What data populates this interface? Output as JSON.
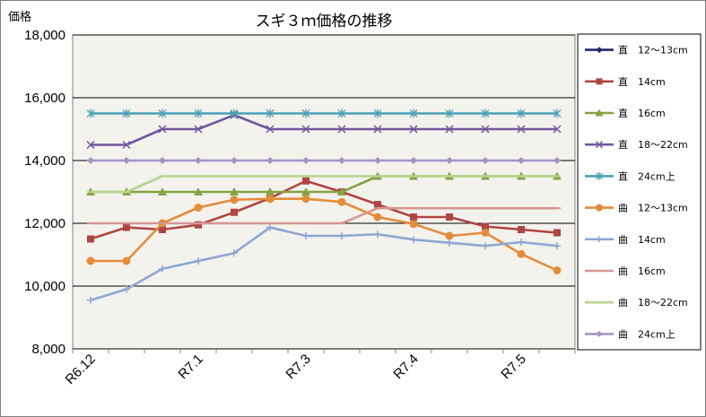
{
  "chart_data": {
    "type": "line",
    "title": "スギ３ｍ価格の推移",
    "ylabel": "価格",
    "xlabel": "",
    "ylim": [
      8000,
      18000
    ],
    "yticks": [
      "8,000",
      "10,000",
      "12,000",
      "14,000",
      "16,000",
      "18,000"
    ],
    "ytick_values": [
      8000,
      10000,
      12000,
      14000,
      16000,
      18000
    ],
    "x_tick_labels": [
      {
        "index": 0,
        "label": "R6.12"
      },
      {
        "index": 3,
        "label": "R7.1"
      },
      {
        "index": 6,
        "label": "R7.3"
      },
      {
        "index": 9,
        "label": "R7.4"
      },
      {
        "index": 12,
        "label": "R7.5"
      }
    ],
    "num_points": 14,
    "grid": true,
    "legend_position": "right",
    "plot_background": "#f3f2ed",
    "series": [
      {
        "name": "直　12～13cm",
        "color": "#1f2a6b",
        "marker": "diamond",
        "values": [
          null,
          null,
          null,
          null,
          null,
          null,
          null,
          null,
          null,
          null,
          null,
          null,
          null,
          null
        ]
      },
      {
        "name": "直　14cm",
        "color": "#b04543",
        "marker": "square",
        "values": [
          11500,
          11870,
          11800,
          11950,
          12350,
          12800,
          13350,
          13000,
          12600,
          12200,
          12200,
          11900,
          11800,
          11700
        ]
      },
      {
        "name": "直　16cm",
        "color": "#83a343",
        "marker": "triangle",
        "values": [
          13000,
          13000,
          13000,
          13000,
          13000,
          13000,
          13000,
          13000,
          13500,
          13500,
          13500,
          13500,
          13500,
          13500
        ]
      },
      {
        "name": "直　18～22cm",
        "color": "#71589d",
        "marker": "x",
        "values": [
          14500,
          14500,
          15000,
          15000,
          15450,
          15000,
          15000,
          15000,
          15000,
          15000,
          15000,
          15000,
          15000,
          15000
        ]
      },
      {
        "name": "直　24cm上",
        "color": "#4aa0b5",
        "marker": "star",
        "values": [
          15500,
          15500,
          15500,
          15500,
          15500,
          15500,
          15500,
          15500,
          15500,
          15500,
          15500,
          15500,
          15500,
          15500
        ]
      },
      {
        "name": "曲　12～13cm",
        "color": "#e38c3a",
        "marker": "circle",
        "values": [
          10800,
          10800,
          12000,
          12500,
          12750,
          12780,
          12780,
          12680,
          12200,
          11980,
          11600,
          11700,
          11020,
          10500
        ]
      },
      {
        "name": "曲　14cm",
        "color": "#8ea7d2",
        "marker": "plus",
        "values": [
          9550,
          9900,
          10550,
          10800,
          11050,
          11870,
          11600,
          11600,
          11650,
          11480,
          11380,
          11280,
          11400,
          11280
        ]
      },
      {
        "name": "曲　16cm",
        "color": "#d59694",
        "marker": "dash",
        "values": [
          12000,
          12000,
          12000,
          12000,
          12000,
          12000,
          12000,
          12000,
          12480,
          12480,
          12480,
          12480,
          12480,
          12480
        ]
      },
      {
        "name": "曲　18～22cm",
        "color": "#b7d48d",
        "marker": "dash",
        "values": [
          13000,
          13000,
          13500,
          13500,
          13500,
          13500,
          13500,
          13500,
          13500,
          13500,
          13500,
          13500,
          13500,
          13500
        ]
      },
      {
        "name": "曲　24cm上",
        "color": "#a594c3",
        "marker": "diamond",
        "values": [
          14000,
          14000,
          14000,
          14000,
          14000,
          14000,
          14000,
          14000,
          14000,
          14000,
          14000,
          14000,
          14000,
          14000
        ]
      }
    ]
  }
}
